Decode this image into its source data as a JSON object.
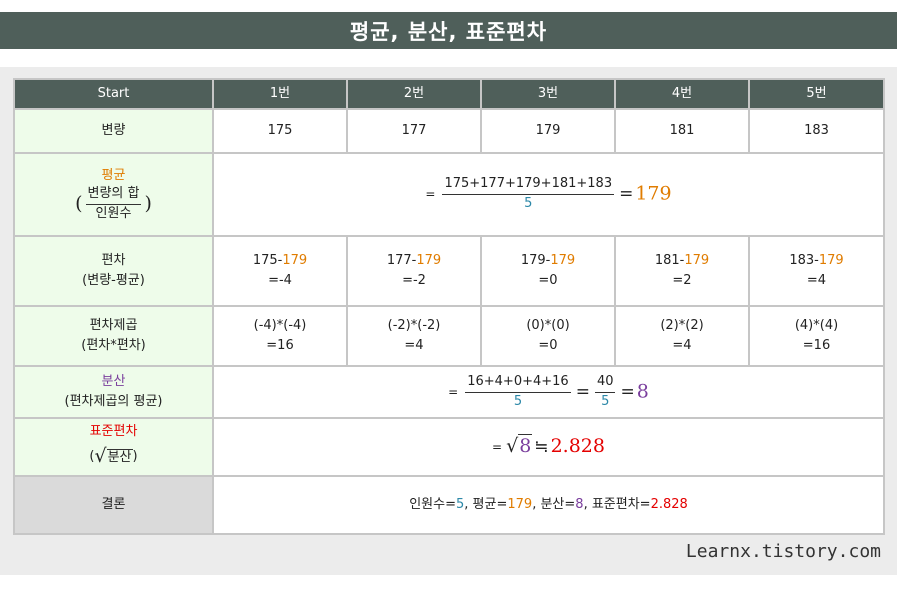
{
  "title": "평균, 분산, 표준편차",
  "header": [
    "Start",
    "1번",
    "2번",
    "3번",
    "4번",
    "5번"
  ],
  "variate": {
    "label": "변량",
    "values": [
      "175",
      "177",
      "179",
      "181",
      "183"
    ]
  },
  "mean": {
    "label": "평균",
    "paren_open": "(",
    "paren_close": ")",
    "sub_num": "변량의 합",
    "sub_den": "인원수",
    "eq_prefix": "=",
    "numerator": "175+177+179+181+183",
    "denominator": "5",
    "eq": "=",
    "result": "179"
  },
  "deviation": {
    "label": "편차",
    "sub": "(변량-평균)",
    "cells": [
      {
        "left": "175-",
        "mean": "179",
        "result": "=-4"
      },
      {
        "left": "177-",
        "mean": "179",
        "result": "=-2"
      },
      {
        "left": "179-",
        "mean": "179",
        "result": "=0"
      },
      {
        "left": "181-",
        "mean": "179",
        "result": "=2"
      },
      {
        "left": "183-",
        "mean": "179",
        "result": "=4"
      }
    ]
  },
  "squared": {
    "label": "편차제곱",
    "sub": "(편차*편차)",
    "cells": [
      {
        "expr": "(-4)*(-4)",
        "result": "=16"
      },
      {
        "expr": "(-2)*(-2)",
        "result": "=4"
      },
      {
        "expr": "(0)*(0)",
        "result": "=0"
      },
      {
        "expr": "(2)*(2)",
        "result": "=4"
      },
      {
        "expr": "(4)*(4)",
        "result": "=16"
      }
    ]
  },
  "variance": {
    "label": "분산",
    "sub": "(편차제곱의 평균)",
    "eq_prefix": "=",
    "numerator": "16+4+0+4+16",
    "denominator": "5",
    "eq1": "=",
    "numerator2": "40",
    "denominator2": "5",
    "eq2": "=",
    "result": "8"
  },
  "stddev": {
    "label": "표준편차",
    "sub_open": "(",
    "sub_radicand": "분산",
    "sub_close": ")",
    "eq_prefix": "=",
    "sqrt_symbol": "√",
    "radicand": "8",
    "approx": "≒",
    "result": "2.828"
  },
  "conclusion": {
    "label": "결론",
    "count_label": "인원수=",
    "count_value": "5",
    "sep1": ", ",
    "mean_label": "평균=",
    "mean_value": "179",
    "sep2": ", ",
    "var_label": "분산=",
    "var_value": "8",
    "sep3": ", ",
    "std_label": "표준편차=",
    "std_value": "2.828"
  },
  "footer": "Learnx.tistory.com",
  "colors": {
    "header_bg": "#4f5f5a",
    "label_bg": "#eefcea",
    "orange": "#e07c00",
    "purple": "#7a3e9d",
    "red": "#e40000",
    "teal": "#2c88a8"
  }
}
